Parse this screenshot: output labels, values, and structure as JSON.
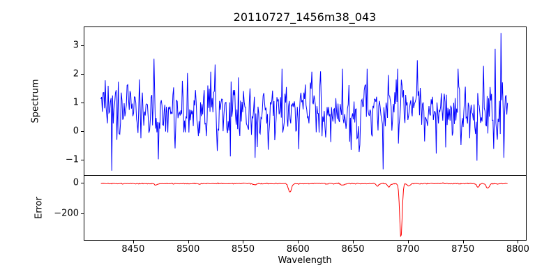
{
  "chart_data": {
    "type": "line",
    "title": "20110727_1456m38_043",
    "xlabel": "Wavelength",
    "xlim": [
      8405,
      8808
    ],
    "x_ticks": [
      8450,
      8500,
      8550,
      8600,
      8650,
      8700,
      8750,
      8800
    ],
    "x_tick_labels": [
      "8450",
      "8500",
      "8550",
      "8600",
      "8650",
      "8700",
      "8750",
      "8800"
    ],
    "grid": false,
    "legend": "none",
    "subplots": [
      {
        "name": "spectrum",
        "ylabel": "Spectrum",
        "ylim": [
          -1.55,
          3.65
        ],
        "y_ticks": [
          -1,
          0,
          1,
          2,
          3
        ],
        "y_tick_labels": [
          "−1",
          "0",
          "1",
          "2",
          "3"
        ],
        "line_color": "#0000ff",
        "series_description": "dense noisy spectrum, mean ~0.8, typical range -0.9 to 2.2, x from 8420 to 8790",
        "series": {
          "x_start": 8420,
          "x_end": 8790,
          "n_points": 560,
          "baseline": 0.78,
          "noise_std": 0.48,
          "ar": 0.3,
          "seed": 20110727,
          "clamp": [
            -1.1,
            2.35
          ]
        },
        "notable_points": [
          {
            "x": 8424,
            "y": 1.8
          },
          {
            "x": 8430,
            "y": -1.35
          },
          {
            "x": 8436,
            "y": 1.75
          },
          {
            "x": 8468,
            "y": 2.55
          },
          {
            "x": 8472,
            "y": -0.95
          },
          {
            "x": 8520,
            "y": 2.1
          },
          {
            "x": 8538,
            "y": -0.85
          },
          {
            "x": 8545,
            "y": 1.9
          },
          {
            "x": 8560,
            "y": -0.9
          },
          {
            "x": 8585,
            "y": 2.2
          },
          {
            "x": 8600,
            "y": -0.6
          },
          {
            "x": 8612,
            "y": 2.1
          },
          {
            "x": 8640,
            "y": 2.2
          },
          {
            "x": 8655,
            "y": -0.7
          },
          {
            "x": 8662,
            "y": 2.2
          },
          {
            "x": 8677,
            "y": -1.3
          },
          {
            "x": 8690,
            "y": 2.2
          },
          {
            "x": 8708,
            "y": 2.5
          },
          {
            "x": 8725,
            "y": -0.75
          },
          {
            "x": 8745,
            "y": 2.2
          },
          {
            "x": 8762,
            "y": -1.0
          },
          {
            "x": 8768,
            "y": 2.3
          },
          {
            "x": 8779,
            "y": 2.9
          },
          {
            "x": 8784,
            "y": 3.45
          },
          {
            "x": 8787,
            "y": -0.9
          }
        ]
      },
      {
        "name": "error",
        "ylabel": "Error",
        "ylim": [
          -375,
          45
        ],
        "y_ticks": [
          0,
          -200
        ],
        "y_tick_labels": [
          "0",
          "−200"
        ],
        "line_color": "#ff0000",
        "series_description": "error nearly flat just below 0 with narrow downward spikes; deepest spike ~-355 at x~8693",
        "series": {
          "x_start": 8420,
          "x_end": 8790,
          "n_points": 560,
          "baseline": -6,
          "noise_std": 1.6,
          "ar": 0.2,
          "seed": 43,
          "clamp": [
            -360,
            2
          ]
        },
        "dips": [
          {
            "x": 8470,
            "depth": 10,
            "width": 1.6
          },
          {
            "x": 8560,
            "depth": 8,
            "width": 1.6
          },
          {
            "x": 8592,
            "depth": 55,
            "width": 2.0
          },
          {
            "x": 8640,
            "depth": 9,
            "width": 1.6
          },
          {
            "x": 8672,
            "depth": 16,
            "width": 1.6
          },
          {
            "x": 8682,
            "depth": 22,
            "width": 1.6
          },
          {
            "x": 8693,
            "depth": 349,
            "width": 1.6
          },
          {
            "x": 8700,
            "depth": 15,
            "width": 1.6
          },
          {
            "x": 8763,
            "depth": 24,
            "width": 1.6
          },
          {
            "x": 8772,
            "depth": 30,
            "width": 2.0
          }
        ]
      }
    ]
  }
}
